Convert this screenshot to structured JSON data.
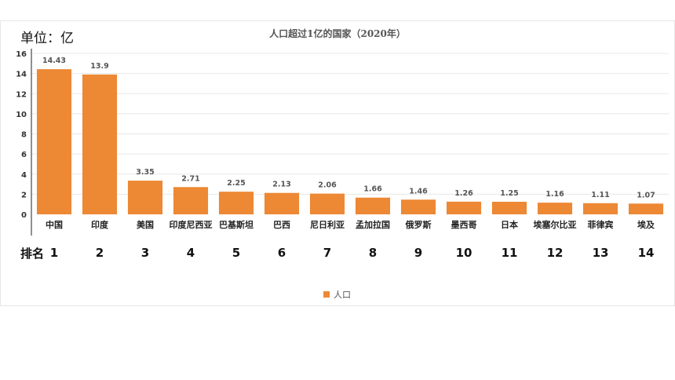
{
  "unit_label": "单位：亿",
  "rank_label": "排名",
  "colors": {
    "bar": "#ED8834",
    "grid": "#e8e8e8",
    "axis": "#222222"
  },
  "chart_data": {
    "type": "bar",
    "title": "人口超过1亿的国家（2020年）",
    "xlabel": "",
    "ylabel": "",
    "ylim": [
      0,
      16
    ],
    "yticks": [
      0,
      2,
      4,
      6,
      8,
      10,
      12,
      14,
      16
    ],
    "grid": true,
    "legend_position": "bottom",
    "categories": [
      "中国",
      "印度",
      "美国",
      "印度尼西亚",
      "巴基斯坦",
      "巴西",
      "尼日利亚",
      "孟加拉国",
      "俄罗斯",
      "墨西哥",
      "日本",
      "埃塞尔比亚",
      "菲律宾",
      "埃及"
    ],
    "ranks": [
      "1",
      "2",
      "3",
      "4",
      "5",
      "6",
      "7",
      "8",
      "9",
      "10",
      "11",
      "12",
      "13",
      "14"
    ],
    "series": [
      {
        "name": "人口",
        "values": [
          14.43,
          13.9,
          3.35,
          2.71,
          2.25,
          2.13,
          2.06,
          1.66,
          1.46,
          1.26,
          1.25,
          1.16,
          1.11,
          1.07
        ],
        "value_labels": [
          "14.43",
          "13.9",
          "3.35",
          "2.71",
          "2.25",
          "2.13",
          "2.06",
          "1.66",
          "1.46",
          "1.26",
          "1.25",
          "1.16",
          "1.11",
          "1.07"
        ]
      }
    ]
  }
}
